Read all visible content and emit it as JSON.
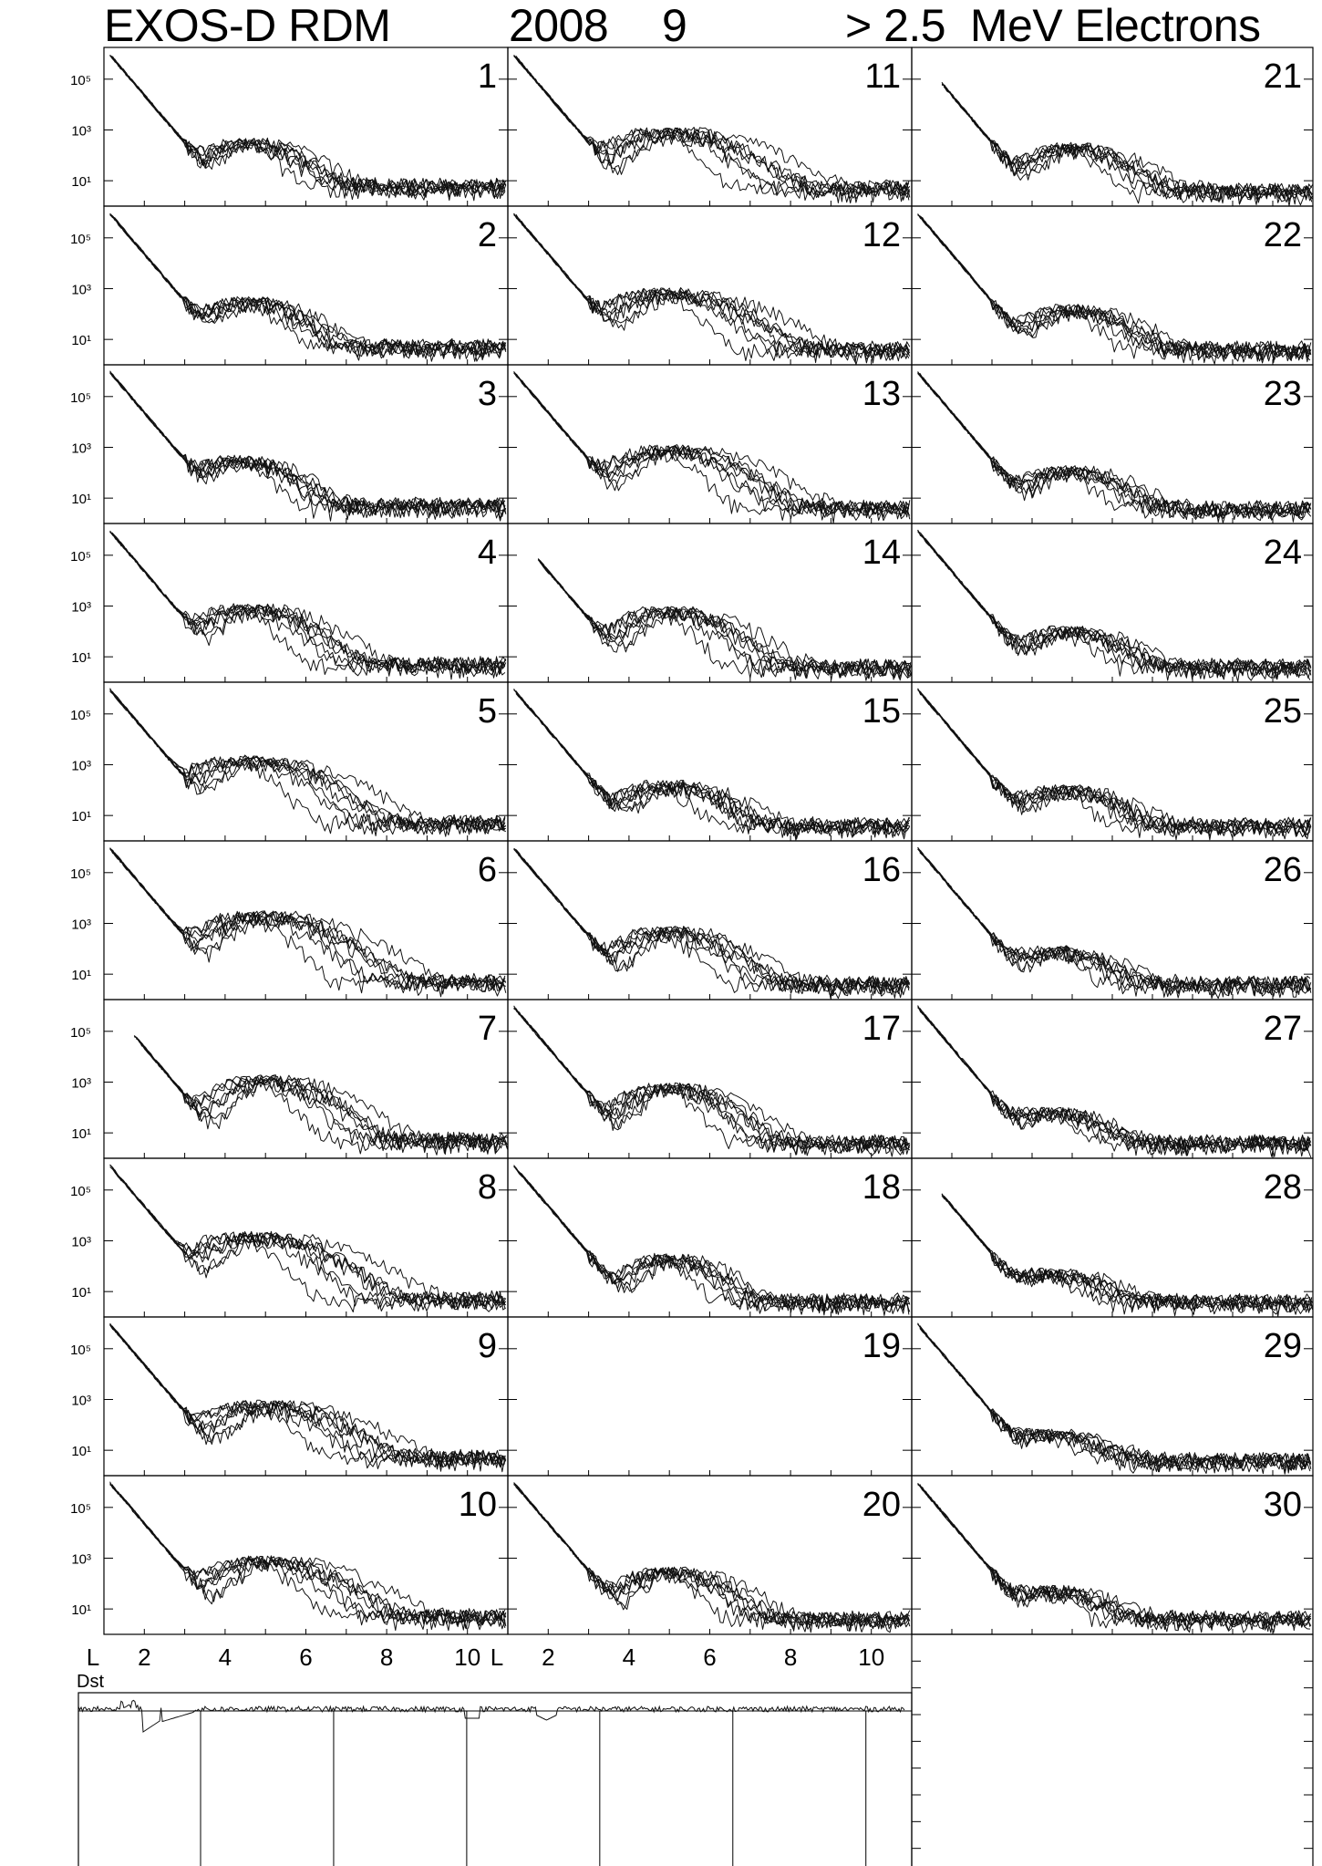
{
  "header": {
    "instrument": "EXOS-D RDM",
    "year": "2008",
    "month": "9",
    "particle": "> 2.5  MeV Electrons"
  },
  "chart_data": {
    "type": "line",
    "title": "EXOS-D RDM 2008 9 > 2.5 MeV Electrons",
    "panels": {
      "days": [
        1,
        2,
        3,
        4,
        5,
        6,
        7,
        8,
        9,
        10,
        11,
        12,
        13,
        14,
        15,
        16,
        17,
        18,
        19,
        20,
        21,
        22,
        23,
        24,
        25,
        26,
        27,
        28,
        29,
        30
      ],
      "no_data_days": [
        19
      ],
      "ylabels": [
        "10⁵",
        "10³",
        "10¹"
      ],
      "y_scale": "log",
      "ylim": [
        1,
        1000000
      ],
      "xlim": [
        1,
        11
      ],
      "x_axis_label": "L",
      "x_ticks": [
        "2",
        "4",
        "6",
        "8",
        "10"
      ],
      "profiles": [
        {
          "day": 1,
          "core": 300,
          "peakL": 4.6,
          "width": 0.8,
          "tail": 0.8,
          "bg": 6
        },
        {
          "day": 2,
          "core": 300,
          "peakL": 4.6,
          "width": 0.8,
          "tail": 0.8,
          "bg": 5
        },
        {
          "day": 3,
          "core": 300,
          "peakL": 4.4,
          "width": 0.8,
          "tail": 0.7,
          "bg": 5
        },
        {
          "day": 4,
          "core": 800,
          "peakL": 4.6,
          "width": 0.8,
          "tail": 1.1,
          "bg": 5
        },
        {
          "day": 5,
          "core": 1500,
          "peakL": 4.6,
          "width": 0.9,
          "tail": 1.3,
          "bg": 5
        },
        {
          "day": 6,
          "core": 2000,
          "peakL": 4.9,
          "width": 0.9,
          "tail": 1.3,
          "bg": 5
        },
        {
          "day": 7,
          "core": 1200,
          "peakL": 5.0,
          "width": 0.8,
          "tail": 1.2,
          "bg": 5
        },
        {
          "day": 8,
          "core": 1500,
          "peakL": 4.7,
          "width": 0.9,
          "tail": 1.5,
          "bg": 5
        },
        {
          "day": 9,
          "core": 600,
          "peakL": 5.0,
          "width": 0.9,
          "tail": 1.4,
          "bg": 5
        },
        {
          "day": 10,
          "core": 800,
          "peakL": 5.0,
          "width": 0.9,
          "tail": 1.3,
          "bg": 5
        },
        {
          "day": 11,
          "core": 800,
          "peakL": 5.0,
          "width": 0.9,
          "tail": 1.4,
          "bg": 5
        },
        {
          "day": 12,
          "core": 700,
          "peakL": 5.0,
          "width": 0.9,
          "tail": 1.3,
          "bg": 4
        },
        {
          "day": 13,
          "core": 800,
          "peakL": 5.0,
          "width": 0.9,
          "tail": 1.2,
          "bg": 4
        },
        {
          "day": 14,
          "core": 600,
          "peakL": 5.0,
          "width": 0.8,
          "tail": 1.1,
          "bg": 4
        },
        {
          "day": 15,
          "core": 150,
          "peakL": 5.0,
          "width": 0.8,
          "tail": 1.0,
          "bg": 4
        },
        {
          "day": 16,
          "core": 500,
          "peakL": 5.0,
          "width": 0.8,
          "tail": 1.1,
          "bg": 4
        },
        {
          "day": 17,
          "core": 600,
          "peakL": 5.0,
          "width": 0.8,
          "tail": 1.0,
          "bg": 4
        },
        {
          "day": 18,
          "core": 200,
          "peakL": 5.0,
          "width": 0.7,
          "tail": 0.9,
          "bg": 4
        },
        {
          "day": 20,
          "core": 300,
          "peakL": 5.0,
          "width": 0.8,
          "tail": 1.0,
          "bg": 4
        },
        {
          "day": 21,
          "core": 200,
          "peakL": 5.0,
          "width": 0.8,
          "tail": 0.9,
          "bg": 4
        },
        {
          "day": 22,
          "core": 150,
          "peakL": 5.0,
          "width": 0.8,
          "tail": 0.9,
          "bg": 4
        },
        {
          "day": 23,
          "core": 120,
          "peakL": 4.9,
          "width": 0.8,
          "tail": 0.9,
          "bg": 4
        },
        {
          "day": 24,
          "core": 100,
          "peakL": 4.9,
          "width": 0.8,
          "tail": 0.9,
          "bg": 4
        },
        {
          "day": 25,
          "core": 100,
          "peakL": 4.8,
          "width": 0.8,
          "tail": 0.9,
          "bg": 4
        },
        {
          "day": 26,
          "core": 80,
          "peakL": 4.6,
          "width": 0.8,
          "tail": 0.9,
          "bg": 4
        },
        {
          "day": 27,
          "core": 60,
          "peakL": 4.5,
          "width": 0.8,
          "tail": 0.9,
          "bg": 4
        },
        {
          "day": 28,
          "core": 50,
          "peakL": 4.5,
          "width": 0.8,
          "tail": 0.9,
          "bg": 4
        },
        {
          "day": 29,
          "core": 40,
          "peakL": 4.5,
          "width": 0.8,
          "tail": 0.9,
          "bg": 4
        },
        {
          "day": 30,
          "core": 50,
          "peakL": 4.5,
          "width": 0.8,
          "tail": 0.9,
          "bg": 4
        }
      ]
    },
    "dst": {
      "label": "Dst",
      "x_ticks": [
        "5",
        "10",
        "15",
        "20",
        "25",
        "30"
      ],
      "divider_days": [
        6,
        11,
        16,
        21,
        26,
        31
      ]
    }
  }
}
